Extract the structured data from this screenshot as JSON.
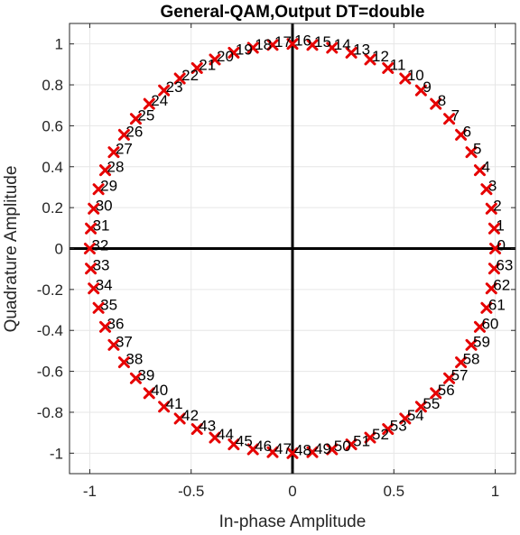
{
  "chart_data": {
    "type": "scatter",
    "title": "General-QAM,Output DT=double",
    "xlabel": "In-phase Amplitude",
    "ylabel": "Quadrature Amplitude",
    "xlim": [
      -1.1,
      1.1
    ],
    "ylim": [
      -1.1,
      1.1
    ],
    "xticks": [
      -1,
      -0.5,
      0,
      0.5,
      1
    ],
    "xtick_labels": [
      "-1",
      "-0.5",
      "0",
      "0.5",
      "1"
    ],
    "yticks": [
      -1,
      -0.8,
      -0.6,
      -0.4,
      -0.2,
      0,
      0.2,
      0.4,
      0.6,
      0.8,
      1
    ],
    "ytick_labels": [
      "-1",
      "-0.8",
      "-0.6",
      "-0.4",
      "-0.2",
      "0",
      "0.2",
      "0.4",
      "0.6",
      "0.8",
      "1"
    ],
    "grid": true,
    "marker": "x",
    "marker_color": "#e60000",
    "point_label_color": "#000000",
    "axis_line_color": "#000000",
    "points": [
      {
        "label": "0",
        "x": 1.0,
        "y": 0.0
      },
      {
        "label": "1",
        "x": 0.995,
        "y": 0.098
      },
      {
        "label": "2",
        "x": 0.981,
        "y": 0.195
      },
      {
        "label": "3",
        "x": 0.957,
        "y": 0.29
      },
      {
        "label": "4",
        "x": 0.924,
        "y": 0.383
      },
      {
        "label": "5",
        "x": 0.882,
        "y": 0.471
      },
      {
        "label": "6",
        "x": 0.831,
        "y": 0.556
      },
      {
        "label": "7",
        "x": 0.773,
        "y": 0.634
      },
      {
        "label": "8",
        "x": 0.707,
        "y": 0.707
      },
      {
        "label": "9",
        "x": 0.634,
        "y": 0.773
      },
      {
        "label": "10",
        "x": 0.556,
        "y": 0.831
      },
      {
        "label": "11",
        "x": 0.471,
        "y": 0.882
      },
      {
        "label": "12",
        "x": 0.383,
        "y": 0.924
      },
      {
        "label": "13",
        "x": 0.29,
        "y": 0.957
      },
      {
        "label": "14",
        "x": 0.195,
        "y": 0.981
      },
      {
        "label": "15",
        "x": 0.098,
        "y": 0.995
      },
      {
        "label": "16",
        "x": 0.0,
        "y": 1.0
      },
      {
        "label": "17",
        "x": -0.098,
        "y": 0.995
      },
      {
        "label": "18",
        "x": -0.195,
        "y": 0.981
      },
      {
        "label": "19",
        "x": -0.29,
        "y": 0.957
      },
      {
        "label": "20",
        "x": -0.383,
        "y": 0.924
      },
      {
        "label": "21",
        "x": -0.471,
        "y": 0.882
      },
      {
        "label": "22",
        "x": -0.556,
        "y": 0.831
      },
      {
        "label": "23",
        "x": -0.634,
        "y": 0.773
      },
      {
        "label": "24",
        "x": -0.707,
        "y": 0.707
      },
      {
        "label": "25",
        "x": -0.773,
        "y": 0.634
      },
      {
        "label": "26",
        "x": -0.831,
        "y": 0.556
      },
      {
        "label": "27",
        "x": -0.882,
        "y": 0.471
      },
      {
        "label": "28",
        "x": -0.924,
        "y": 0.383
      },
      {
        "label": "29",
        "x": -0.957,
        "y": 0.29
      },
      {
        "label": "30",
        "x": -0.981,
        "y": 0.195
      },
      {
        "label": "31",
        "x": -0.995,
        "y": 0.098
      },
      {
        "label": "32",
        "x": -1.0,
        "y": 0.0
      },
      {
        "label": "33",
        "x": -0.995,
        "y": -0.098
      },
      {
        "label": "34",
        "x": -0.981,
        "y": -0.195
      },
      {
        "label": "35",
        "x": -0.957,
        "y": -0.29
      },
      {
        "label": "36",
        "x": -0.924,
        "y": -0.383
      },
      {
        "label": "37",
        "x": -0.882,
        "y": -0.471
      },
      {
        "label": "38",
        "x": -0.831,
        "y": -0.556
      },
      {
        "label": "39",
        "x": -0.773,
        "y": -0.634
      },
      {
        "label": "40",
        "x": -0.707,
        "y": -0.707
      },
      {
        "label": "41",
        "x": -0.634,
        "y": -0.773
      },
      {
        "label": "42",
        "x": -0.556,
        "y": -0.831
      },
      {
        "label": "43",
        "x": -0.471,
        "y": -0.882
      },
      {
        "label": "44",
        "x": -0.383,
        "y": -0.924
      },
      {
        "label": "45",
        "x": -0.29,
        "y": -0.957
      },
      {
        "label": "46",
        "x": -0.195,
        "y": -0.981
      },
      {
        "label": "47",
        "x": -0.098,
        "y": -0.995
      },
      {
        "label": "48",
        "x": 0.0,
        "y": -1.0
      },
      {
        "label": "49",
        "x": 0.098,
        "y": -0.995
      },
      {
        "label": "50",
        "x": 0.195,
        "y": -0.981
      },
      {
        "label": "51",
        "x": 0.29,
        "y": -0.957
      },
      {
        "label": "52",
        "x": 0.383,
        "y": -0.924
      },
      {
        "label": "53",
        "x": 0.471,
        "y": -0.882
      },
      {
        "label": "54",
        "x": 0.556,
        "y": -0.831
      },
      {
        "label": "55",
        "x": 0.634,
        "y": -0.773
      },
      {
        "label": "56",
        "x": 0.707,
        "y": -0.707
      },
      {
        "label": "57",
        "x": 0.773,
        "y": -0.634
      },
      {
        "label": "58",
        "x": 0.831,
        "y": -0.556
      },
      {
        "label": "59",
        "x": 0.882,
        "y": -0.471
      },
      {
        "label": "60",
        "x": 0.924,
        "y": -0.383
      },
      {
        "label": "61",
        "x": 0.957,
        "y": -0.29
      },
      {
        "label": "62",
        "x": 0.981,
        "y": -0.195
      },
      {
        "label": "63",
        "x": 0.995,
        "y": -0.098
      }
    ]
  }
}
